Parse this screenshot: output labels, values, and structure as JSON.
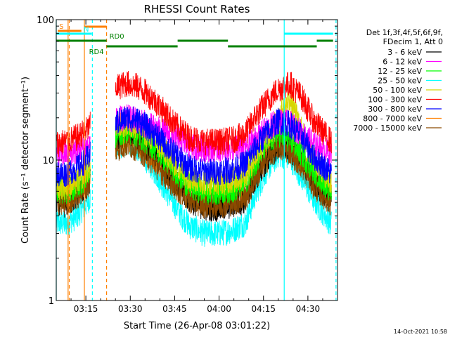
{
  "chart_data": {
    "type": "line",
    "title": "RHESSI Count Rates",
    "xlabel": "Start Time (26-Apr-08 03:01:22)",
    "ylabel": "Count Rate (s⁻¹ detector segment⁻¹)",
    "y_scale": "log",
    "ylim": [
      1,
      100
    ],
    "xlim_minutes_after_0300": [
      5,
      100
    ],
    "x_ticks": [
      {
        "t": 15,
        "label": "03:15"
      },
      {
        "t": 30,
        "label": "03:30"
      },
      {
        "t": 45,
        "label": "03:45"
      },
      {
        "t": 60,
        "label": "04:00"
      },
      {
        "t": 75,
        "label": "04:15"
      },
      {
        "t": 90,
        "label": "04:30"
      }
    ],
    "y_ticks": [
      {
        "v": 1,
        "label": "1"
      },
      {
        "v": 10,
        "label": "10"
      },
      {
        "v": 100,
        "label": "100"
      }
    ],
    "legend_header": [
      "Det 1f,3f,4f,5f,6f,9f,",
      "FDecim 1, Att 0"
    ],
    "legend_position": "right",
    "data_gaps_minutes": [
      [
        16.5,
        25
      ],
      [
        98.5,
        100
      ]
    ],
    "series": [
      {
        "name": "3 - 6 keV",
        "color": "#000000",
        "x": [
          5,
          8,
          12,
          15.5,
          25,
          29,
          33,
          38,
          45,
          50,
          55,
          60,
          65,
          69,
          72,
          76,
          80,
          84,
          88,
          92,
          98
        ],
        "values": [
          5.2,
          4.8,
          5.5,
          6.6,
          14.0,
          16.0,
          14.0,
          11.0,
          7.0,
          5.2,
          4.6,
          4.5,
          4.8,
          5.2,
          7.2,
          10.0,
          12.5,
          12.0,
          10.0,
          7.0,
          5.0
        ]
      },
      {
        "name": "6 - 12 keV",
        "color": "#ff00ff",
        "x": [
          5,
          8,
          12,
          15.5,
          25,
          29,
          33,
          38,
          45,
          50,
          55,
          60,
          65,
          69,
          72,
          76,
          80,
          84,
          88,
          92,
          98
        ],
        "values": [
          11.0,
          11.0,
          11.5,
          12.5,
          19.0,
          20.0,
          19.0,
          17.0,
          14.5,
          12.5,
          12.0,
          12.0,
          12.0,
          12.5,
          14.0,
          16.5,
          19.0,
          18.0,
          15.5,
          13.0,
          11.0
        ]
      },
      {
        "name": "12 - 25 keV",
        "color": "#00ff00",
        "x": [
          5,
          8,
          12,
          15.5,
          25,
          29,
          33,
          38,
          45,
          50,
          55,
          60,
          65,
          69,
          72,
          76,
          80,
          84,
          88,
          92,
          98
        ],
        "values": [
          6.0,
          6.0,
          6.5,
          7.8,
          15.0,
          16.5,
          15.0,
          12.5,
          8.5,
          6.5,
          6.0,
          6.0,
          6.2,
          7.0,
          9.5,
          13.0,
          15.5,
          14.0,
          11.0,
          8.5,
          6.0
        ]
      },
      {
        "name": "25 - 50 keV",
        "color": "#00ffff",
        "x": [
          5,
          8,
          12,
          15.5,
          25,
          29,
          33,
          38,
          45,
          50,
          55,
          60,
          65,
          69,
          72,
          76,
          80,
          84,
          88,
          92,
          98
        ],
        "values": [
          3.6,
          3.5,
          4.0,
          5.0,
          12.0,
          13.5,
          12.0,
          8.5,
          4.8,
          3.4,
          3.0,
          3.0,
          3.2,
          3.6,
          5.5,
          8.5,
          11.0,
          10.5,
          7.5,
          5.2,
          3.5
        ]
      },
      {
        "name": "50 - 100 keV",
        "color": "#d7d700",
        "x": [
          5,
          8,
          12,
          15.5,
          25,
          29,
          33,
          38,
          45,
          50,
          55,
          60,
          65,
          69,
          72,
          76,
          80,
          84,
          88,
          92,
          98
        ],
        "values": [
          6.5,
          6.5,
          7.0,
          8.5,
          17.5,
          18.0,
          17.0,
          14.0,
          9.5,
          7.5,
          7.0,
          7.0,
          7.2,
          8.0,
          10.5,
          14.0,
          20.0,
          27.0,
          16.0,
          10.0,
          7.0
        ]
      },
      {
        "name": "100 - 300 keV",
        "color": "#ff0000",
        "x": [
          5,
          8,
          12,
          15.5,
          25,
          29,
          33,
          38,
          45,
          50,
          55,
          60,
          65,
          69,
          72,
          76,
          80,
          84,
          88,
          92,
          98
        ],
        "values": [
          13.0,
          13.5,
          14.5,
          16.5,
          33.0,
          35.0,
          33.0,
          27.0,
          18.0,
          14.5,
          13.5,
          13.5,
          14.0,
          15.5,
          20.0,
          26.0,
          32.0,
          35.0,
          28.0,
          19.0,
          13.5
        ]
      },
      {
        "name": "300 - 800 keV",
        "color": "#0000ff",
        "x": [
          5,
          8,
          12,
          15.5,
          25,
          29,
          33,
          38,
          45,
          50,
          55,
          60,
          65,
          69,
          72,
          76,
          80,
          84,
          88,
          92,
          98
        ],
        "values": [
          8.0,
          8.0,
          8.8,
          10.2,
          18.5,
          20.0,
          19.0,
          15.5,
          11.0,
          8.8,
          8.3,
          8.3,
          8.6,
          9.5,
          12.0,
          15.5,
          19.0,
          18.0,
          14.5,
          10.5,
          8.0
        ]
      },
      {
        "name": "800 - 7000 keV",
        "color": "#ff8000",
        "x": [
          5,
          8,
          12,
          15.5,
          25,
          29,
          33,
          38,
          45,
          50,
          55,
          60,
          65,
          69,
          72,
          76,
          80,
          84,
          88,
          92,
          98
        ],
        "values": [
          5.6,
          5.6,
          6.2,
          7.2,
          13.0,
          14.0,
          13.0,
          10.5,
          7.2,
          5.8,
          5.3,
          5.3,
          5.5,
          6.0,
          8.0,
          11.0,
          13.5,
          12.5,
          10.0,
          7.2,
          5.4
        ]
      },
      {
        "name": "7000 - 15000 keV",
        "color": "#8b4a00",
        "x": [
          5,
          8,
          12,
          15.5,
          25,
          29,
          33,
          38,
          45,
          50,
          55,
          60,
          65,
          69,
          72,
          76,
          80,
          84,
          88,
          92,
          98
        ],
        "values": [
          5.0,
          5.0,
          5.5,
          6.5,
          12.0,
          13.0,
          12.0,
          9.5,
          6.5,
          5.2,
          4.8,
          4.8,
          5.0,
          5.4,
          7.2,
          10.0,
          12.5,
          11.5,
          9.0,
          6.5,
          4.9
        ]
      }
    ],
    "vertical_markers": [
      {
        "t": 5.0,
        "color": "#00ffff",
        "style": "solid"
      },
      {
        "t": 9.0,
        "color": "#ff8000",
        "style": "solid"
      },
      {
        "t": 9.4,
        "color": "#ff8000",
        "style": "dashed"
      },
      {
        "t": 14.5,
        "color": "#ff8000",
        "style": "solid"
      },
      {
        "t": 17.2,
        "color": "#00ffff",
        "style": "dashed"
      },
      {
        "t": 22.0,
        "color": "#ff8000",
        "style": "dashed"
      },
      {
        "t": 82.0,
        "color": "#00ffff",
        "style": "solid"
      },
      {
        "t": 99.5,
        "color": "#00ffff",
        "style": "dashed"
      }
    ],
    "flag_bars": [
      {
        "label": "S",
        "color": "#ff8000",
        "y": 0.96,
        "segments": [
          [
            5.5,
            13.5
          ]
        ]
      },
      {
        "label": "",
        "color": "#ff8000",
        "y": 0.975,
        "segments": [
          [
            14.5,
            22.0
          ]
        ]
      },
      {
        "label": "N",
        "color": "#00ffff",
        "y": 0.95,
        "segments": [
          [
            5.0,
            17.0
          ],
          [
            82.0,
            98.5
          ]
        ]
      },
      {
        "label": "RD0",
        "color": "#008000",
        "y": 0.925,
        "segments": [
          [
            5.0,
            22.0
          ],
          [
            46.0,
            63.0
          ],
          [
            93.0,
            98.5
          ]
        ]
      },
      {
        "label": "RD4",
        "color": "#008000",
        "y": 0.905,
        "segments": [
          [
            22.0,
            46.0
          ],
          [
            63.0,
            93.0
          ]
        ]
      }
    ],
    "footer_timestamp": "14-Oct-2021 10:58"
  }
}
